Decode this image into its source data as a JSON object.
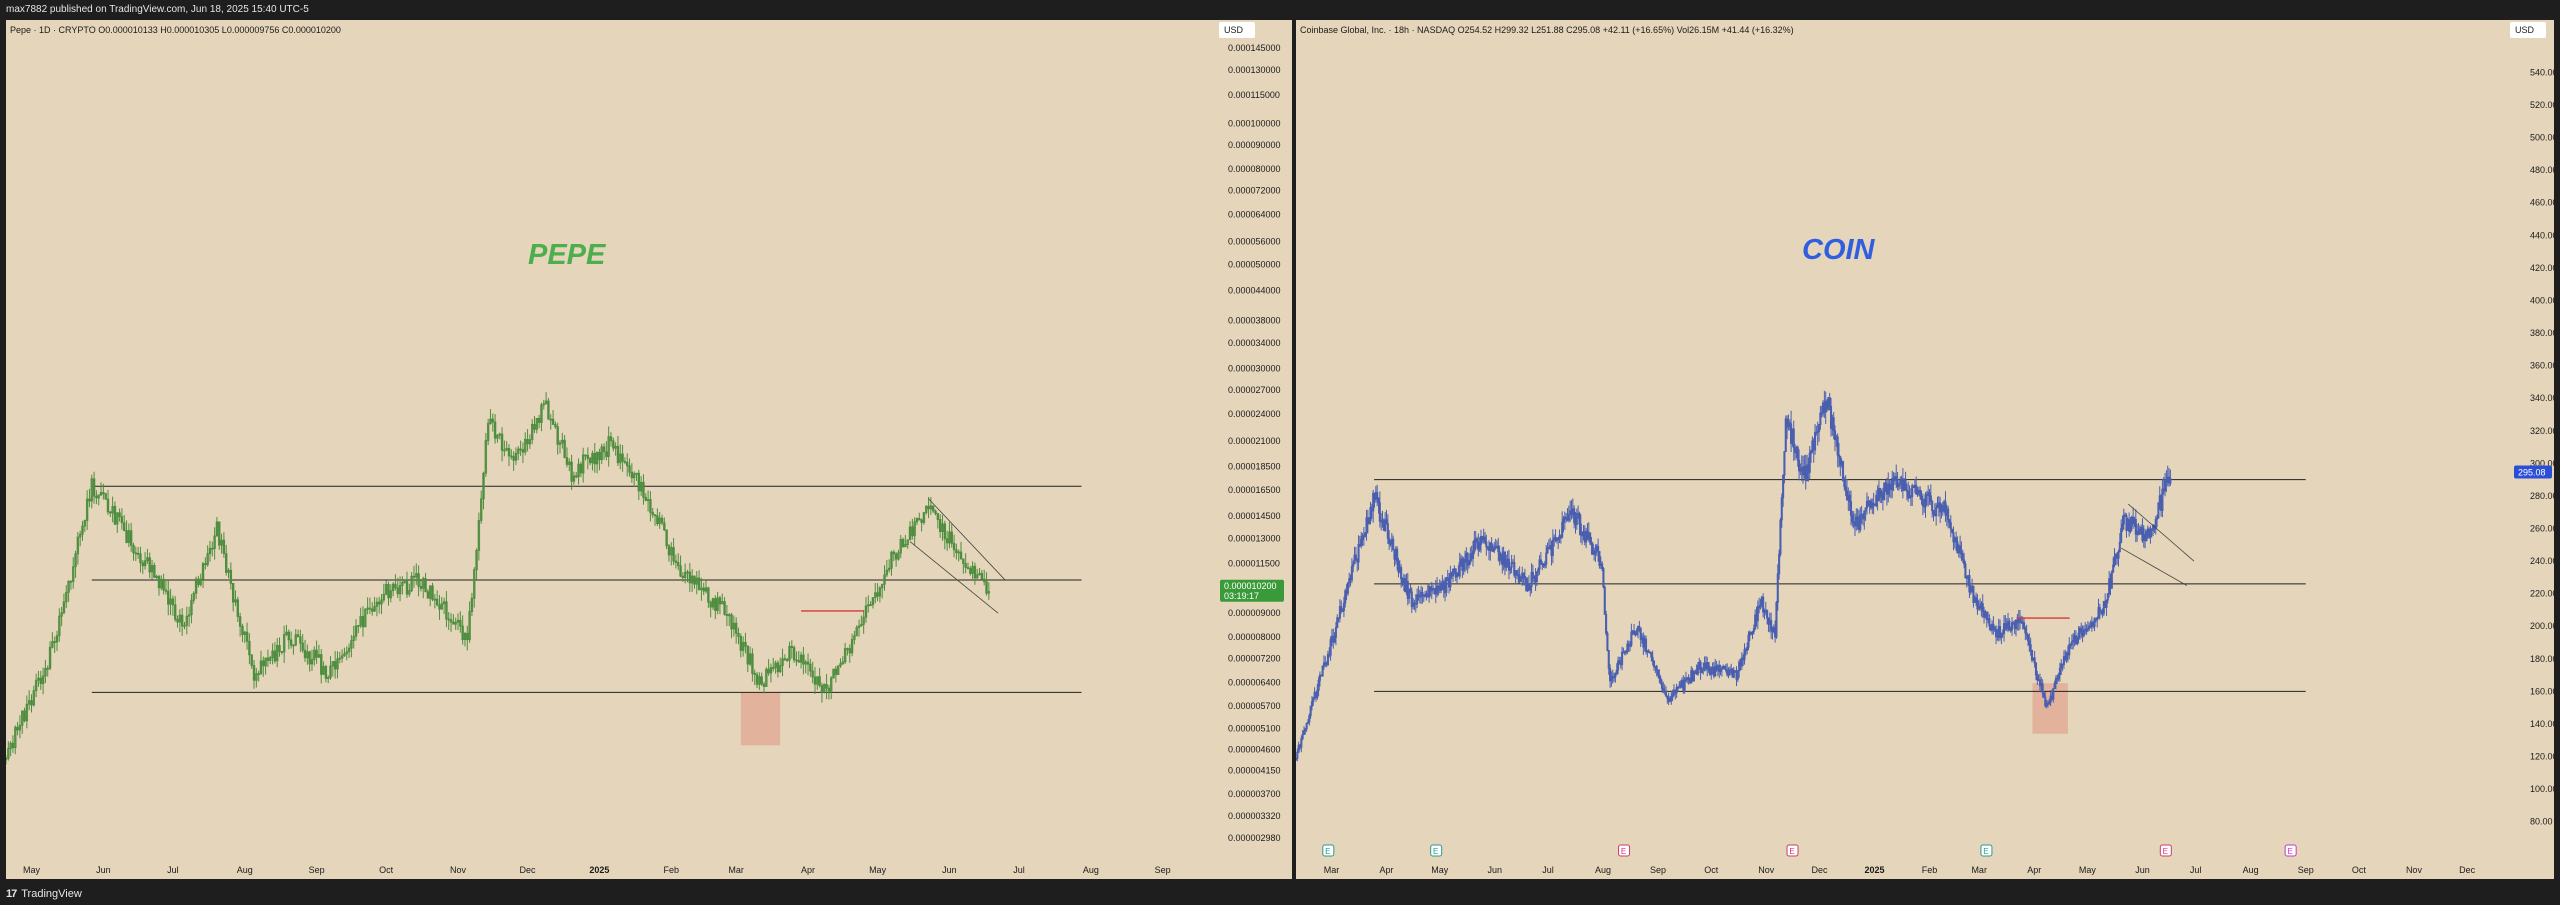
{
  "top_bar": {
    "text": "max7882 published on TradingView.com, Jun 18, 2025 15:40 UTC-5"
  },
  "brand": {
    "name": "TradingView"
  },
  "colors": {
    "background": "#e5d6bb",
    "pepe_candle": "#4e8d3f",
    "coin_candle": "#4a5fb0",
    "pepe_label": "#4cae4c",
    "coin_label": "#2f5fe0",
    "price_badge_pepe": "#3a9a3a",
    "price_badge_coin": "#2a4fd6",
    "highlight_box": "#e1a592",
    "red_line": "#d33b3b"
  },
  "left_chart": {
    "legend": "Pepe · 1D · CRYPTO  O0.000010133  H0.000010305  L0.000009756  C0.000010200",
    "currency_button": "USD",
    "watermark": "PEPE",
    "price_label": "0.000010200",
    "countdown_label": "03:19:17"
  },
  "right_chart": {
    "legend": "Coinbase Global, Inc. · 18h · NASDAQ  O254.52  H299.32  L251.88  C295.08  +42.11 (+16.65%)  Vol26.15M  +41.44 (+16.32%)",
    "currency_button": "USD",
    "watermark": "COIN",
    "price_label": "295.08",
    "event_markers": [
      {
        "glyph": "E",
        "color": "#2a9a8e",
        "at": 0.018
      },
      {
        "glyph": "E",
        "color": "#2a9a8e",
        "at": 0.107
      },
      {
        "glyph": "E",
        "color": "#cf3a6a",
        "at": 0.262
      },
      {
        "glyph": "E",
        "color": "#cf3a6a",
        "at": 0.401
      },
      {
        "glyph": "E",
        "color": "#2a9a8e",
        "at": 0.561
      },
      {
        "glyph": "E",
        "color": "#cf3a6a",
        "at": 0.709
      },
      {
        "glyph": "E",
        "color": "#c03ac0",
        "at": 0.812
      }
    ]
  },
  "chart_data": [
    {
      "type": "candlestick",
      "title": "",
      "symbol": "Pepe · 1D · CRYPTO",
      "scale": "log",
      "y_ticks": [
        "0.000145000",
        "0.000130000",
        "0.000115000",
        "0.000100000",
        "0.000090000",
        "0.000080000",
        "0.000072000",
        "0.000064000",
        "0.000056000",
        "0.000050000",
        "0.000044000",
        "0.000038000",
        "0.000034000",
        "0.000030000",
        "0.000027000",
        "0.000024000",
        "0.000021000",
        "0.000018500",
        "0.000016500",
        "0.000014500",
        "0.000013000",
        "0.000011500",
        "0.000009000",
        "0.000008000",
        "0.000007200",
        "0.000006400",
        "0.000005700",
        "0.000005100",
        "0.000004600",
        "0.000004150",
        "0.000003700",
        "0.000003320",
        "0.000002980"
      ],
      "ylim": [
        2.98e-06,
        0.000145
      ],
      "x_ticks": [
        "May",
        "Jun",
        "Jul",
        "Aug",
        "Sep",
        "Oct",
        "Nov",
        "Dec",
        "2025",
        "Feb",
        "Mar",
        "Apr",
        "May",
        "Jun",
        "Jul",
        "Aug",
        "Sep"
      ],
      "x_start": "2024-04-20",
      "x_end": "2025-09-24",
      "price_path": [
        [
          "2024-04-20",
          4.5e-06
        ],
        [
          "2024-05-10",
          7.5e-06
        ],
        [
          "2024-05-27",
          1.68e-05
        ],
        [
          "2024-06-10",
          1.35e-05
        ],
        [
          "2024-06-25",
          1.05e-05
        ],
        [
          "2024-07-05",
          8.5e-06
        ],
        [
          "2024-07-20",
          1.35e-05
        ],
        [
          "2024-08-05",
          6.6e-06
        ],
        [
          "2024-08-20",
          8e-06
        ],
        [
          "2024-09-07",
          6.7e-06
        ],
        [
          "2024-09-28",
          9.8e-06
        ],
        [
          "2024-10-15",
          1.05e-05
        ],
        [
          "2024-11-05",
          8e-06
        ],
        [
          "2024-11-14",
          2.28e-05
        ],
        [
          "2024-11-25",
          1.9e-05
        ],
        [
          "2024-12-09",
          2.5e-05
        ],
        [
          "2024-12-20",
          1.8e-05
        ],
        [
          "2025-01-05",
          2.05e-05
        ],
        [
          "2025-01-20",
          1.65e-05
        ],
        [
          "2025-02-05",
          1.1e-05
        ],
        [
          "2025-02-25",
          9e-06
        ],
        [
          "2025-03-11",
          6.4e-06
        ],
        [
          "2025-03-25",
          7.5e-06
        ],
        [
          "2025-04-08",
          6.1e-06
        ],
        [
          "2025-04-25",
          8.8e-06
        ],
        [
          "2025-05-10",
          1.25e-05
        ],
        [
          "2025-05-23",
          1.5e-05
        ],
        [
          "2025-06-05",
          1.22e-05
        ],
        [
          "2025-06-18",
          1.02e-05
        ]
      ],
      "annotations": {
        "horizontal_lines": [
          1.68e-05,
          1.06e-05,
          6.1e-06
        ],
        "red_line": {
          "from": "2025-03-29",
          "to": "2025-04-25",
          "value": 9.1e-06
        },
        "highlight_box": {
          "from": "2025-03-03",
          "to": "2025-03-20",
          "low": 4.7e-06,
          "high": 6.1e-06
        },
        "descending_wedge_upper": [
          [
            "2025-05-23",
            1.58e-05
          ],
          [
            "2025-06-25",
            1.06e-05
          ]
        ],
        "descending_wedge_lower": [
          [
            "2025-05-15",
            1.28e-05
          ],
          [
            "2025-06-22",
            9e-06
          ]
        ],
        "line_span": [
          "2024-05-27",
          "2025-07-28"
        ]
      }
    },
    {
      "type": "candlestick",
      "title": "",
      "symbol": "Coinbase Global, Inc. · 18h · NASDAQ",
      "scale": "linear",
      "y_ticks": [
        540,
        520,
        500,
        480,
        460,
        440,
        420,
        400,
        380,
        360,
        340,
        320,
        300,
        280,
        260,
        240,
        220,
        200,
        180,
        160,
        140,
        120,
        100,
        80
      ],
      "ylim": [
        70,
        555
      ],
      "x_ticks": [
        "Mar",
        "Apr",
        "May",
        "Jun",
        "Jul",
        "Aug",
        "Sep",
        "Oct",
        "Nov",
        "Dec",
        "2025",
        "Feb",
        "Mar",
        "Apr",
        "May",
        "Jun",
        "Jul",
        "Aug",
        "Sep",
        "Oct",
        "Nov",
        "Dec"
      ],
      "x_start": "2024-02-10",
      "x_end": "2025-12-24",
      "price_path": [
        [
          "2024-02-10",
          120
        ],
        [
          "2024-03-01",
          190
        ],
        [
          "2024-03-25",
          280
        ],
        [
          "2024-04-15",
          215
        ],
        [
          "2024-05-05",
          225
        ],
        [
          "2024-05-25",
          255
        ],
        [
          "2024-06-20",
          225
        ],
        [
          "2024-07-15",
          270
        ],
        [
          "2024-07-31",
          240
        ],
        [
          "2024-08-05",
          165
        ],
        [
          "2024-08-20",
          200
        ],
        [
          "2024-09-07",
          155
        ],
        [
          "2024-09-25",
          175
        ],
        [
          "2024-10-15",
          170
        ],
        [
          "2024-10-29",
          215
        ],
        [
          "2024-11-06",
          195
        ],
        [
          "2024-11-12",
          330
        ],
        [
          "2024-11-22",
          290
        ],
        [
          "2024-12-05",
          340
        ],
        [
          "2024-12-20",
          260
        ],
        [
          "2025-01-10",
          290
        ],
        [
          "2025-01-25",
          280
        ],
        [
          "2025-02-10",
          270
        ],
        [
          "2025-02-25",
          220
        ],
        [
          "2025-03-10",
          195
        ],
        [
          "2025-03-25",
          205
        ],
        [
          "2025-04-08",
          150
        ],
        [
          "2025-04-22",
          190
        ],
        [
          "2025-05-10",
          210
        ],
        [
          "2025-05-22",
          265
        ],
        [
          "2025-06-05",
          255
        ],
        [
          "2025-06-17",
          295
        ]
      ],
      "annotations": {
        "horizontal_lines": [
          290,
          226,
          160
        ],
        "red_line": {
          "from": "2025-03-22",
          "to": "2025-04-21",
          "value": 205
        },
        "highlight_box": {
          "from": "2025-03-31",
          "to": "2025-04-20",
          "low": 134,
          "high": 165
        },
        "descending_wedge_upper": [
          [
            "2025-05-24",
            275
          ],
          [
            "2025-06-30",
            240
          ]
        ],
        "descending_wedge_lower": [
          [
            "2025-05-20",
            248
          ],
          [
            "2025-06-26",
            225
          ]
        ],
        "line_span": [
          "2024-03-25",
          "2025-09-01"
        ]
      }
    }
  ]
}
